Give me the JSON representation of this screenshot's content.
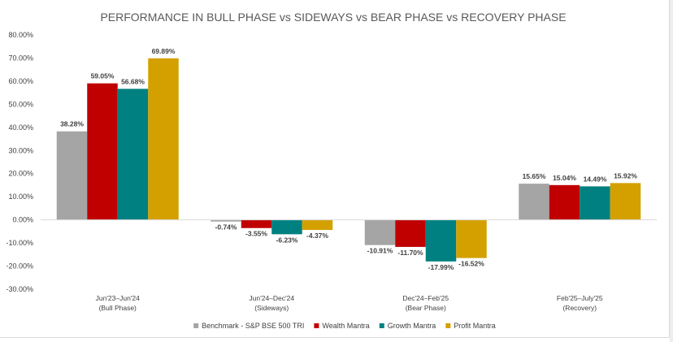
{
  "chart_data": {
    "type": "bar",
    "title": "PERFORMANCE IN BULL PHASE vs SIDEWAYS vs BEAR PHASE vs RECOVERY PHASE",
    "xlabel": "",
    "ylabel": "",
    "ylim": [
      -30,
      80
    ],
    "yticks": [
      -30,
      -20,
      -10,
      0,
      10,
      20,
      30,
      40,
      50,
      60,
      70,
      80
    ],
    "ytick_labels": [
      "-30.00%",
      "-20.00%",
      "-10.00%",
      "0.00%",
      "10.00%",
      "20.00%",
      "30.00%",
      "40.00%",
      "50.00%",
      "60.00%",
      "70.00%",
      "80.00%"
    ],
    "grid": false,
    "legend_position": "bottom",
    "categories": [
      {
        "line1": "Jun'23–Jun'24",
        "line2": "(Bull Phase)"
      },
      {
        "line1": "Jun'24–Dec'24",
        "line2": "(Sideways)"
      },
      {
        "line1": "Dec'24–Feb'25",
        "line2": "(Bear Phase)"
      },
      {
        "line1": "Feb'25–July'25",
        "line2": "(Recovery)"
      }
    ],
    "series": [
      {
        "name": "Benchmark - S&P BSE 500 TRI",
        "color": "#a5a5a5",
        "values": [
          38.28,
          -0.74,
          -10.91,
          15.65
        ],
        "labels": [
          "38.28%",
          "-0.74%",
          "-10.91%",
          "15.65%"
        ]
      },
      {
        "name": "Wealth Mantra",
        "color": "#c00000",
        "values": [
          59.05,
          -3.55,
          -11.7,
          15.04
        ],
        "labels": [
          "59.05%",
          "-3.55%",
          "-11.70%",
          "15.04%"
        ]
      },
      {
        "name": "Growth Mantra",
        "color": "#008080",
        "values": [
          56.68,
          -6.23,
          -17.99,
          14.49
        ],
        "labels": [
          "56.68%",
          "-6.23%",
          "-17.99%",
          "14.49%"
        ]
      },
      {
        "name": "Profit Mantra",
        "color": "#d4a000",
        "values": [
          69.89,
          -4.37,
          -16.52,
          15.92
        ],
        "labels": [
          "69.89%",
          "-4.37%",
          "-16.52%",
          "15.92%"
        ]
      }
    ]
  }
}
